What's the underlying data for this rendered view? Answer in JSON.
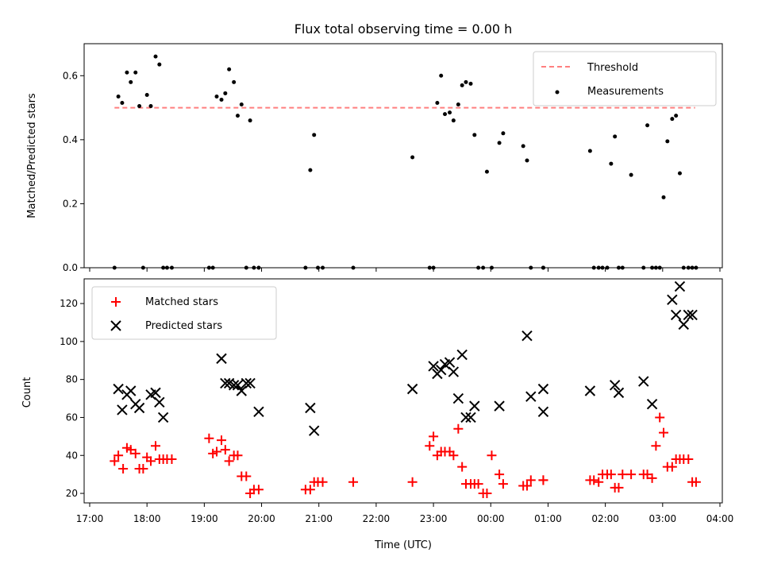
{
  "chart_data": [
    {
      "type": "scatter",
      "title": "Flux total observing time = 0.00 h",
      "ylabel": "Matched/Predicted stars",
      "xlim": [
        "17:00",
        "04:00"
      ],
      "ylim": [
        0,
        0.7
      ],
      "yticks": [
        "0.0",
        "0.2",
        "0.4",
        "0.6"
      ],
      "ytick_values": [
        0,
        0.2,
        0.4,
        0.6
      ],
      "legend_position": "top-right",
      "series": [
        {
          "name": "Threshold",
          "style": "dashed-line",
          "color": "#ff7f7f",
          "x": [
            "17:26",
            "03:34"
          ],
          "y": [
            0.5,
            0.5
          ]
        },
        {
          "name": "Measurements",
          "style": "dot",
          "color": "#000000",
          "x": [
            "17:26",
            "17:30",
            "17:34",
            "17:39",
            "17:43",
            "17:48",
            "17:52",
            "17:56",
            "18:00",
            "18:04",
            "18:09",
            "18:13",
            "18:17",
            "18:21",
            "18:26",
            "19:05",
            "19:09",
            "19:13",
            "19:18",
            "19:22",
            "19:26",
            "19:31",
            "19:35",
            "19:39",
            "19:44",
            "19:48",
            "19:52",
            "19:57",
            "20:46",
            "20:51",
            "20:55",
            "20:59",
            "21:04",
            "21:36",
            "22:38",
            "22:56",
            "23:00",
            "23:04",
            "23:08",
            "23:12",
            "23:17",
            "23:21",
            "23:26",
            "23:30",
            "23:34",
            "23:39",
            "23:43",
            "23:47",
            "23:52",
            "23:56",
            "00:01",
            "00:09",
            "00:13",
            "00:34",
            "00:38",
            "00:42",
            "00:55",
            "00:55",
            "01:44",
            "01:48",
            "01:53",
            "01:57",
            "02:02",
            "02:06",
            "02:10",
            "02:14",
            "02:18",
            "02:27",
            "02:40",
            "02:44",
            "02:49",
            "02:53",
            "02:57",
            "03:01",
            "03:05",
            "03:10",
            "03:14",
            "03:18",
            "03:22",
            "03:27",
            "03:31",
            "03:35"
          ],
          "y": [
            0,
            0.535,
            0.515,
            0.61,
            0.58,
            0.61,
            0.505,
            0,
            0.54,
            0.505,
            0.66,
            0.635,
            0,
            0,
            0,
            0,
            0,
            0.535,
            0.525,
            0.545,
            0.62,
            0.58,
            0.475,
            0.51,
            0,
            0.46,
            0,
            0,
            0,
            0.305,
            0.415,
            0,
            0,
            0,
            0.345,
            0,
            0,
            0.515,
            0.6,
            0.48,
            0.485,
            0.46,
            0.51,
            0.57,
            0.58,
            0.575,
            0.415,
            0,
            0,
            0.3,
            0,
            0.39,
            0.42,
            0.38,
            0.335,
            0,
            0,
            0,
            0.365,
            0,
            0,
            0,
            0,
            0.325,
            0.41,
            0,
            0,
            0.29,
            0,
            0.445,
            0,
            0,
            0,
            0.22,
            0.395,
            0.465,
            0.475,
            0.295,
            0,
            0,
            0,
            0
          ]
        }
      ]
    },
    {
      "type": "scatter",
      "title": "",
      "xlabel": "Time (UTC)",
      "ylabel": "Count",
      "xlim": [
        "17:00",
        "04:00"
      ],
      "ylim": [
        15,
        133
      ],
      "xticks": [
        "17:00",
        "18:00",
        "19:00",
        "20:00",
        "21:00",
        "22:00",
        "23:00",
        "00:00",
        "01:00",
        "02:00",
        "03:00",
        "04:00"
      ],
      "yticks": [
        "20",
        "40",
        "60",
        "80",
        "100",
        "120"
      ],
      "ytick_values": [
        20,
        40,
        60,
        80,
        100,
        120
      ],
      "legend_position": "top-left",
      "series": [
        {
          "name": "Matched stars",
          "style": "plus",
          "color": "#ff0000",
          "x": [
            "17:26",
            "17:30",
            "17:35",
            "17:39",
            "17:43",
            "17:48",
            "17:52",
            "17:56",
            "18:00",
            "18:04",
            "18:09",
            "18:13",
            "18:17",
            "18:21",
            "18:26",
            "19:05",
            "19:09",
            "19:13",
            "19:18",
            "19:22",
            "19:26",
            "19:31",
            "19:35",
            "19:39",
            "19:44",
            "19:48",
            "19:52",
            "19:57",
            "20:46",
            "20:51",
            "20:55",
            "20:59",
            "21:04",
            "21:36",
            "22:38",
            "22:56",
            "23:00",
            "23:04",
            "23:08",
            "23:12",
            "23:17",
            "23:21",
            "23:26",
            "23:30",
            "23:34",
            "23:39",
            "23:43",
            "23:47",
            "23:52",
            "23:56",
            "00:01",
            "00:09",
            "00:13",
            "00:34",
            "00:38",
            "00:42",
            "00:55",
            "00:55",
            "01:44",
            "01:48",
            "01:53",
            "01:57",
            "02:02",
            "02:06",
            "02:10",
            "02:14",
            "02:18",
            "02:27",
            "02:40",
            "02:44",
            "02:49",
            "02:53",
            "02:57",
            "03:01",
            "03:05",
            "03:10",
            "03:14",
            "03:18",
            "03:22",
            "03:27",
            "03:31",
            "03:35"
          ],
          "y": [
            37,
            40,
            33,
            44,
            43,
            41,
            33,
            33,
            39,
            37,
            45,
            38,
            38,
            38,
            38,
            49,
            41,
            42,
            48,
            43,
            37,
            40,
            40,
            29,
            29,
            20,
            22,
            22,
            22,
            22,
            26,
            26,
            26,
            26,
            26,
            45,
            50,
            40,
            42,
            42,
            42,
            40,
            54,
            34,
            25,
            25,
            25,
            25,
            20,
            20,
            40,
            30,
            25,
            24,
            24,
            27,
            27,
            27,
            27,
            27,
            26,
            30,
            30,
            30,
            23,
            23,
            30,
            30,
            30,
            30,
            28,
            45,
            60,
            52,
            34,
            34,
            38,
            38,
            38,
            38,
            26,
            26
          ],
          "x_note": ""
        },
        {
          "name": "Predicted stars",
          "style": "x",
          "color": "#000000",
          "x": [
            "17:30",
            "17:34",
            "17:39",
            "17:43",
            "17:48",
            "17:52",
            "18:04",
            "18:09",
            "18:13",
            "18:17",
            "19:18",
            "19:22",
            "19:26",
            "19:31",
            "19:35",
            "19:39",
            "19:44",
            "19:48",
            "19:57",
            "20:51",
            "20:55",
            "22:38",
            "23:00",
            "23:04",
            "23:08",
            "23:12",
            "23:17",
            "23:21",
            "23:26",
            "23:30",
            "23:34",
            "23:39",
            "23:43",
            "00:09",
            "00:38",
            "00:42",
            "00:55",
            "00:55",
            "01:44",
            "02:10",
            "02:14",
            "02:40",
            "02:49",
            "03:10",
            "03:14",
            "03:18",
            "03:22",
            "03:27",
            "03:31"
          ],
          "y": [
            75,
            64,
            72,
            74,
            67,
            65,
            72,
            73,
            68,
            60,
            91,
            78,
            78,
            77,
            77,
            74,
            78,
            78,
            63,
            65,
            53,
            75,
            87,
            83,
            85,
            88,
            89,
            84,
            70,
            93,
            60,
            60,
            66,
            66,
            103,
            71,
            75,
            63,
            74,
            77,
            73,
            79,
            67,
            122,
            114,
            129,
            109,
            114,
            114
          ]
        }
      ]
    }
  ]
}
